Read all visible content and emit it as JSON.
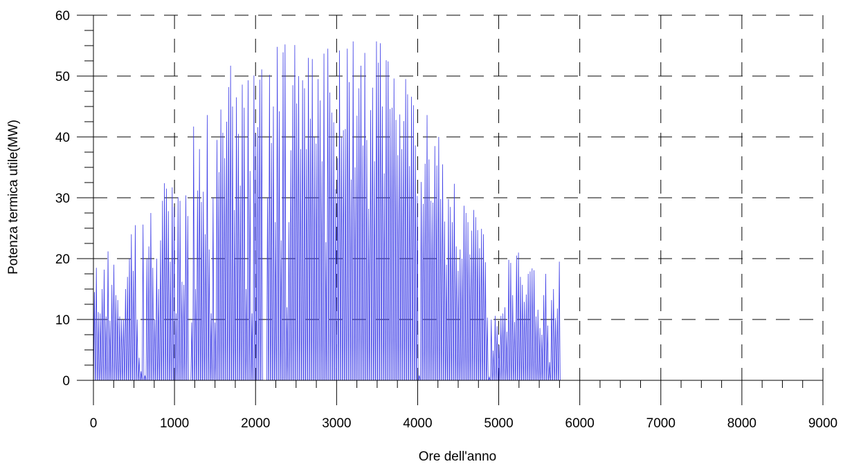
{
  "chart_data": {
    "type": "line",
    "title": "",
    "xlabel": "Ore dell'anno",
    "ylabel": "Potenza termica utile(MW)",
    "xlim": [
      0,
      9000
    ],
    "ylim": [
      0,
      60
    ],
    "x_ticks": [
      "0",
      "1000",
      "2000",
      "3000",
      "4000",
      "5000",
      "6000",
      "7000",
      "8000",
      "9000"
    ],
    "y_ticks": [
      "0",
      "10",
      "20",
      "30",
      "40",
      "50",
      "60"
    ],
    "grid": true,
    "legend": "none",
    "series_color": "#3a3ae6",
    "daily_peaks_every_24h": [
      14.5,
      18.5,
      11.2,
      11,
      15,
      18.2,
      10.5,
      21.2,
      9.8,
      15.7,
      19,
      14,
      13.2,
      10.5,
      10,
      9.9,
      15,
      17,
      20,
      24,
      18,
      25.5,
      10,
      3.7,
      1.5,
      25.6,
      0.8,
      20,
      22,
      27.5,
      18.5,
      10,
      20,
      15,
      23,
      29.5,
      32.4,
      31.5,
      27.8,
      19.5,
      31.7,
      28.5,
      11,
      30.1,
      29.5,
      16.2,
      15.7,
      30.4,
      27,
      0,
      9.5,
      41.7,
      15,
      31.2,
      38,
      29.3,
      31,
      24,
      43.6,
      21.5,
      11,
      30,
      9.5,
      39.5,
      34.2,
      44.5,
      40.7,
      36.5,
      42.5,
      48.2,
      51.7,
      45,
      28,
      46.5,
      40.5,
      32,
      48.6,
      44.8,
      15,
      49.3,
      34.4,
      11,
      50.1,
      40.5,
      41.6,
      49.4,
      51.1,
      0,
      0,
      30,
      50.2,
      39,
      45,
      26,
      54.8,
      44.2,
      23,
      53.9,
      55.2,
      12,
      26,
      37.8,
      48.5,
      55.1,
      45.5,
      50,
      38,
      49.3,
      48,
      38,
      53,
      43,
      52.8,
      40,
      38.9,
      49.5,
      46,
      36,
      53.7,
      22.7,
      54.5,
      47.3,
      44,
      42.4,
      31.4,
      36.5,
      54.2,
      39.9,
      41.1,
      41.3,
      54.5,
      49,
      33,
      55.7,
      35,
      43.5,
      48,
      51.7,
      38.6,
      53.8,
      39.5,
      28.2,
      44.4,
      48.1,
      36,
      55.7,
      52.2,
      55.4,
      45,
      34,
      52.6,
      52.4,
      44.6,
      44.8,
      49.6,
      42.8,
      37,
      43.7,
      38,
      42.6,
      49.5,
      47,
      35.2,
      46.6,
      45.2,
      38.6,
      30.3,
      0.8,
      32.6,
      29,
      35.6,
      43.6,
      36.3,
      29.5,
      29.2,
      38.5,
      35.3,
      40,
      29.8,
      35.5,
      26.1,
      19,
      29.8,
      28.5,
      26,
      32.3,
      22,
      18,
      21.5,
      20,
      28.7,
      27.5,
      26,
      20.7,
      24.6,
      28,
      26.8,
      24.7,
      21.7,
      24.9,
      24,
      19.4,
      10.3,
      0.5,
      10,
      4.9,
      10.6,
      8.9,
      5.8,
      10.6,
      11,
      12,
      8,
      19.8,
      19.3,
      14,
      9.6,
      20.5,
      21,
      17,
      15.7,
      12.9,
      14.1,
      17.5,
      17.9,
      18.4,
      18.1,
      10.5,
      11.6,
      8.6,
      7.5,
      14,
      17.5,
      9,
      3,
      13.2,
      15,
      10.2,
      11.8,
      19.5
    ]
  }
}
